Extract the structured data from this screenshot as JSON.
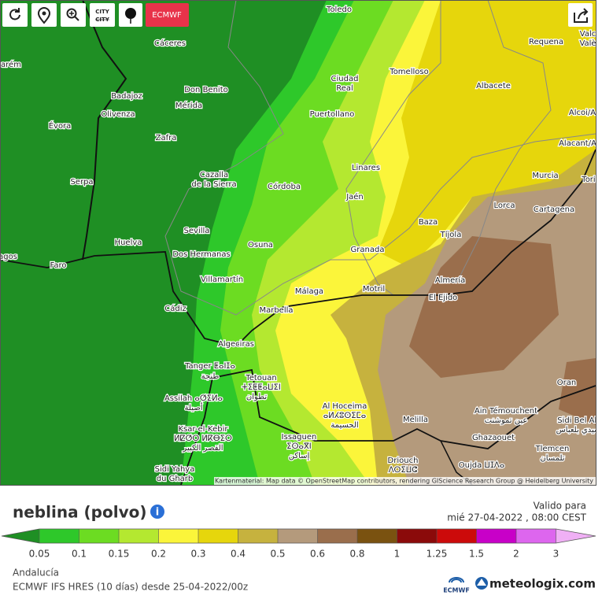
{
  "toolbar": {
    "city_button": "CITY",
    "model_button": "ECMWF"
  },
  "map": {
    "labels": [
      "Toledo",
      "Cáceres",
      "Requena",
      "Valc",
      "Valè",
      "arém",
      "Tomelloso",
      "Ciudad",
      "Real",
      "Albacete",
      "Don Benito",
      "Badajoz",
      "Mérida",
      "Alcoi/A",
      "Olivenza",
      "Puertollano",
      "Évora",
      "Zafra",
      "Alacant/A",
      "Linares",
      "Murcia",
      "Cazalla",
      "de la Sierra",
      "Serpa",
      "Córdoba",
      "Jaén",
      "Lorca",
      "Cartagena",
      "Tori",
      "Baza",
      "Sevilla",
      "Tíjola",
      "Huelva",
      "Osuna",
      "Granada",
      "Dos Hermanas",
      "agos",
      "Faro",
      "Villamartín",
      "Almería",
      "Motril",
      "Málaga",
      "El Ejido",
      "Cádiz",
      "Marbella",
      "Algeciras",
      "Tanger ⵟⴰⵏⵊⴰ",
      "طنجة",
      "Tetouan",
      "ⵜⵉⵟⵟⴰⵡⵉⵏ",
      "تطوان",
      "Oran",
      "Assilah ⴰⵚⵉⵍⴰ",
      "أصيلة",
      "Al Hoceima",
      "ⴰⵍⵃⵓⵙⵉⵎⴰ",
      "الحسيمة",
      "Ain Témouchent",
      "عين تموشنت",
      "Sidi Bel Ab",
      "سيدي بلعباس",
      "Melilla",
      "Ksar-el-Kebir",
      "ⵍⵇⵚⵔ ⵍⴽⴱⵉⵔ",
      "القصر الكبير",
      "Issaguen",
      "ⵉⵙⴰⴳⵏ",
      "إساكن",
      "Ghazaouet",
      "Tlemcen",
      "تلمسان",
      "Driouch",
      "ⴷⵔⵉⵡⵛ",
      "Oujda ⵡⵊⴷⴰ",
      "Sidi Yahya",
      "du Gharb"
    ],
    "attribution": "Kartenmaterial: Map data © OpenStreetMap contributors, rendering GIScience Research Group @ Heidelberg University"
  },
  "legend": {
    "title": "neblina (polvo)",
    "valid_label": "Valido para",
    "valid_time": "mié 27-04-2022 , 08:00 CEST",
    "colors": [
      "#1f8f24",
      "#2ec82a",
      "#6cdc22",
      "#b4e830",
      "#fbf53a",
      "#e6d60c",
      "#c6b23e",
      "#b49a7c",
      "#9a6e4c",
      "#7a5210",
      "#8b0a0a",
      "#cc0a0a",
      "#c800c8",
      "#dd66ee",
      "#f0b0f5"
    ],
    "labels": [
      0.05,
      0.1,
      0.15,
      0.2,
      0.3,
      0.4,
      0.5,
      0.6,
      0.8,
      1,
      1.25,
      1.5,
      2,
      3
    ]
  },
  "footer": {
    "region": "Andalucía",
    "model_run": "ECMWF IFS HRES (10 días) desde 25-04-2022/00z",
    "ecmwf_logo": "ECMWF",
    "brand": "meteologix.com"
  }
}
